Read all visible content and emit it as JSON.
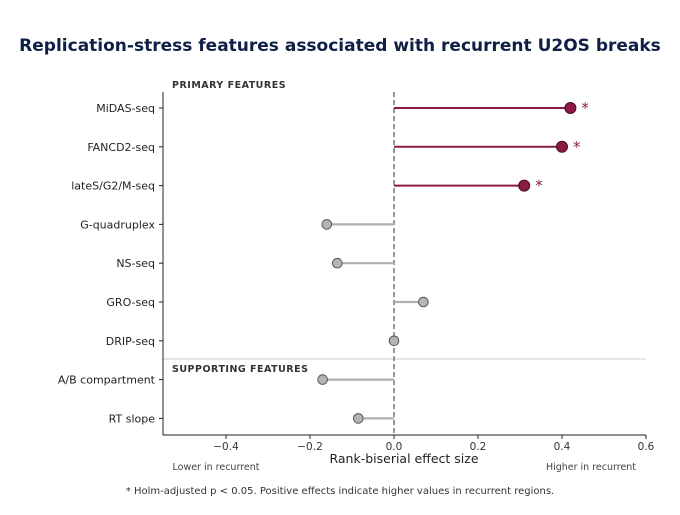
{
  "title": "Replication-stress features associated with recurrent U2OS breaks",
  "footnote": "* Holm-adjusted p < 0.05. Positive effects indicate higher values in recurrent regions.",
  "colors": {
    "significant": "#8b1a45",
    "nonsignificant": "#b0b0b0",
    "title": "#0f1f45"
  },
  "chart_data": {
    "type": "lollipop",
    "title": "Replication-stress features associated with recurrent U2OS breaks",
    "xlabel": "Rank-biserial effect size",
    "xlim": [
      -0.55,
      0.6
    ],
    "xticks": [
      -0.4,
      -0.2,
      0.0,
      0.2,
      0.4,
      0.6
    ],
    "xtick_labels": [
      "−0.4",
      "−0.2",
      "0.0",
      "0.2",
      "0.4",
      "0.6"
    ],
    "reference_line": 0,
    "direction_labels": {
      "left": "Lower in recurrent",
      "right": "Higher in recurrent"
    },
    "groups": [
      {
        "label": "PRIMARY FEATURES",
        "start_index": 0
      },
      {
        "label": "SUPPORTING FEATURES",
        "start_index": 7
      }
    ],
    "significance_marker": "*",
    "features": [
      {
        "name": "MiDAS-seq",
        "value": 0.42,
        "significant": true
      },
      {
        "name": "FANCD2-seq",
        "value": 0.4,
        "significant": true
      },
      {
        "name": "lateS/G2/M-seq",
        "value": 0.31,
        "significant": true
      },
      {
        "name": "G-quadruplex",
        "value": -0.16,
        "significant": false
      },
      {
        "name": "NS-seq",
        "value": -0.135,
        "significant": false
      },
      {
        "name": "GRO-seq",
        "value": 0.07,
        "significant": false
      },
      {
        "name": "DRIP-seq",
        "value": 0.0,
        "significant": false
      },
      {
        "name": "A/B compartment",
        "value": -0.17,
        "significant": false
      },
      {
        "name": "RT slope",
        "value": -0.085,
        "significant": false
      }
    ]
  }
}
